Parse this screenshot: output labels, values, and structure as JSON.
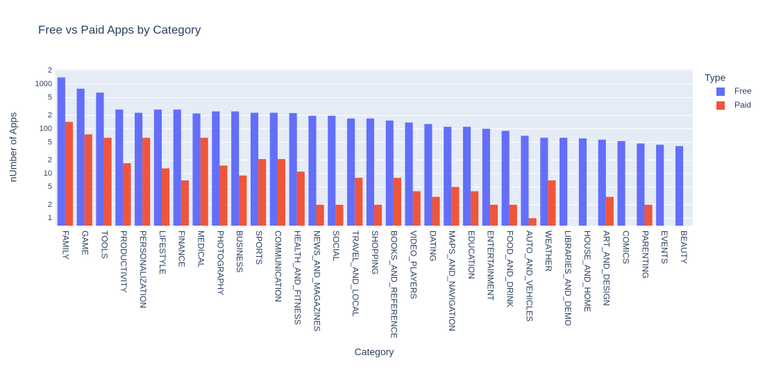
{
  "chart_data": {
    "type": "bar",
    "title": "Free vs Paid Apps by Category",
    "x_label": "Category",
    "y_label": "nUmber of Apps",
    "legend_title": "Type",
    "log_y": true,
    "grid": true,
    "legend_position": "right",
    "categories": [
      "FAMILY",
      "GAME",
      "TOOLS",
      "PRODUCTIVITY",
      "PERSONALIZATION",
      "LIFESTYLE",
      "FINANCE",
      "MEDICAL",
      "PHOTOGRAPHY",
      "BUSINESS",
      "SPORTS",
      "COMMUNICATION",
      "HEALTH_AND_FITNESS",
      "NEWS_AND_MAGAZINES",
      "SOCIAL",
      "TRAVEL_AND_LOCAL",
      "SHOPPING",
      "BOOKS_AND_REFERENCE",
      "VIDEO_PLAYERS",
      "DATING",
      "MAPS_AND_NAVIGATION",
      "EDUCATION",
      "ENTERTAINMENT",
      "FOOD_AND_DRINK",
      "AUTO_AND_VEHICLES",
      "WEATHER",
      "LIBRARIES_AND_DEMO",
      "HOUSE_AND_HOME",
      "ART_AND_DESIGN",
      "COMICS",
      "PARENTING",
      "EVENTS",
      "BEAUTY"
    ],
    "series": [
      {
        "name": "Free",
        "color": "#636efa",
        "values": [
          1410,
          790,
          645,
          270,
          228,
          270,
          270,
          220,
          245,
          245,
          228,
          228,
          225,
          196,
          196,
          170,
          170,
          153,
          138,
          128,
          111,
          111,
          100,
          90,
          70,
          63,
          63,
          61,
          57,
          53,
          47,
          44,
          41
        ]
      },
      {
        "name": "Paid",
        "color": "#ef553b",
        "values": [
          143,
          75,
          63,
          17,
          63,
          13,
          7,
          63,
          15,
          9,
          21,
          21,
          11,
          2,
          2,
          8,
          2,
          8,
          4,
          3,
          5,
          4,
          2,
          2,
          1,
          7,
          null,
          null,
          3,
          null,
          2,
          null,
          null
        ]
      }
    ],
    "ylim": [
      0.68,
      2130
    ],
    "yticks": [
      1,
      2,
      5,
      10,
      {
        "value": 20,
        "label": "2"
      },
      {
        "value": 50,
        "label": "5"
      },
      100,
      {
        "value": 200,
        "label": "2"
      },
      {
        "value": 500,
        "label": "5"
      },
      1000,
      {
        "value": 2000,
        "label": "2"
      }
    ]
  }
}
